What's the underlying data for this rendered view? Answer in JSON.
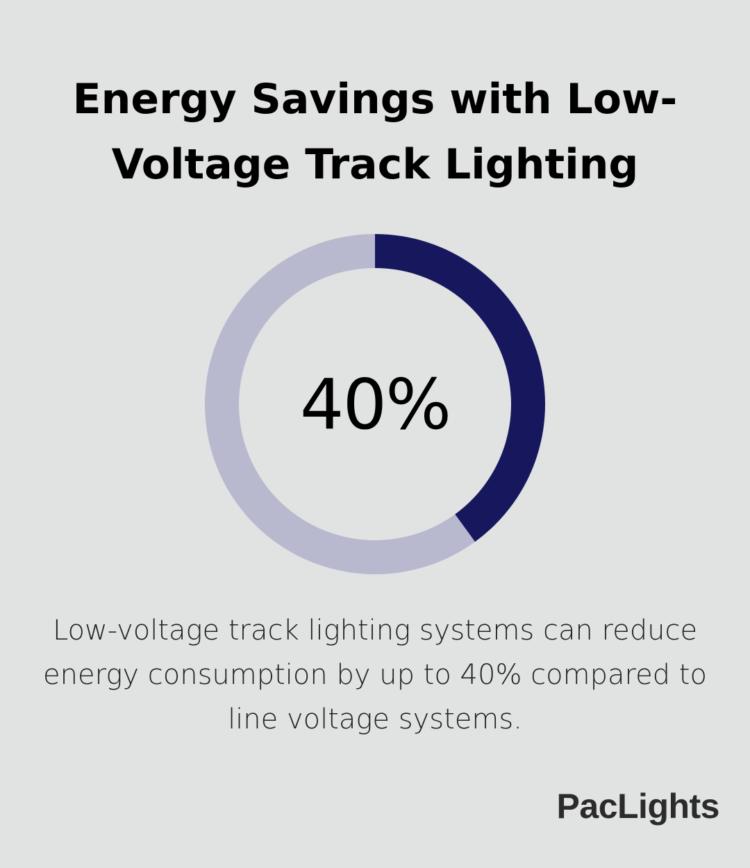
{
  "title": "Energy Savings with Low-Voltage Track Lighting",
  "description": "Low-voltage track lighting systems can reduce energy consumption by up to 40% compared to line voltage systems.",
  "brand": "PacLights",
  "colors": {
    "background": "#e1e2e2",
    "accent": "#17175e",
    "track": "#b8b9cf"
  },
  "chart_data": {
    "type": "pie",
    "value_label": "40%",
    "slices": [
      {
        "value": 40,
        "color": "#17175e"
      },
      {
        "value": 60,
        "color": "#b8b9cf"
      }
    ]
  }
}
